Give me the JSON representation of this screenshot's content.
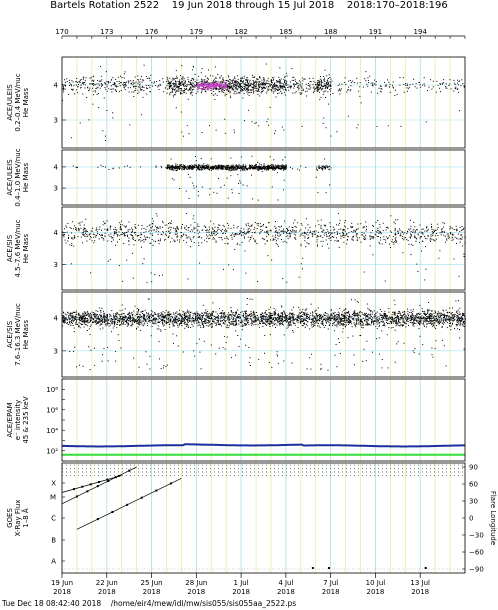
{
  "title": "Bartels Rotation 2522    19 Jun 2018 through 15 Jul 2018    2018:170–2018:196",
  "footer": "Tue Dec 18 08:42:40 2018    /home/eir4/mew/idl/mw/sis055/sis055aa_2522.ps",
  "colors": {
    "grid_yellow": "#f0e68c",
    "grid_cyan": "#a0e0f0",
    "points": "#000000",
    "dense_magenta": "#cc44cc",
    "epam_blue": "#1a2ea0",
    "epam_green": "#33dd33"
  },
  "chart_data": {
    "type": "scatter",
    "x_axis": {
      "range": [
        "2018-06-19",
        "2018-07-16"
      ],
      "date_ticks": [
        {
          "label": "19 Jun",
          "year": "2018",
          "date": "2018-06-19"
        },
        {
          "label": "22 Jun",
          "year": "2018",
          "date": "2018-06-22"
        },
        {
          "label": "25 Jun",
          "year": "2018",
          "date": "2018-06-25"
        },
        {
          "label": "28 Jun",
          "year": "2018",
          "date": "2018-06-28"
        },
        {
          "label": "1 Jul",
          "year": "2018",
          "date": "2018-07-01"
        },
        {
          "label": "4 Jul",
          "year": "2018",
          "date": "2018-07-04"
        },
        {
          "label": "7 Jul",
          "year": "2018",
          "date": "2018-07-07"
        },
        {
          "label": "10 Jul",
          "year": "2018",
          "date": "2018-07-10"
        },
        {
          "label": "13 Jul",
          "year": "2018",
          "date": "2018-07-13"
        }
      ],
      "doy_ticks": [
        {
          "label": "170",
          "date": "2018-06-19"
        },
        {
          "label": "173",
          "date": "2018-06-22"
        },
        {
          "label": "176",
          "date": "2018-06-25"
        },
        {
          "label": "179",
          "date": "2018-06-28"
        },
        {
          "label": "182",
          "date": "2018-07-01"
        },
        {
          "label": "185",
          "date": "2018-07-04"
        },
        {
          "label": "188",
          "date": "2018-07-07"
        },
        {
          "label": "191",
          "date": "2018-07-10"
        },
        {
          "label": "194",
          "date": "2018-07-13"
        }
      ]
    },
    "panels": [
      {
        "ylabel": [
          "ACE/ULEIS",
          "0.2–0.4 MeV/nuc",
          "He Mass"
        ],
        "ylim": [
          2.2,
          4.8
        ],
        "yticks": [
          "3",
          "4"
        ],
        "center": 4.0,
        "spread": 0.12,
        "density": [
          {
            "from": "2018-06-19",
            "to": "2018-06-25",
            "level": "medium"
          },
          {
            "from": "2018-06-25",
            "to": "2018-06-26",
            "level": "low"
          },
          {
            "from": "2018-06-26",
            "to": "2018-07-04",
            "level": "high"
          },
          {
            "from": "2018-07-04",
            "to": "2018-07-06",
            "level": "medium"
          },
          {
            "from": "2018-07-06",
            "to": "2018-07-07",
            "level": "high"
          },
          {
            "from": "2018-07-07",
            "to": "2018-07-16",
            "level": "low"
          }
        ],
        "dense_core": {
          "from": "2018-06-28",
          "to": "2018-06-30",
          "value": 4.0,
          "color": "#cc44cc"
        }
      },
      {
        "ylabel": [
          "ACE/ULEIS",
          "0.4–1.0 MeV/nuc",
          "He Mass"
        ],
        "ylim": [
          2.2,
          4.8
        ],
        "yticks": [
          "3",
          "4"
        ],
        "center": 4.0,
        "spread": 0.06,
        "density": [
          {
            "from": "2018-06-19",
            "to": "2018-06-26",
            "level": "sparse"
          },
          {
            "from": "2018-06-26",
            "to": "2018-07-04",
            "level": "high"
          },
          {
            "from": "2018-07-04",
            "to": "2018-07-06",
            "level": "sparse"
          },
          {
            "from": "2018-07-06",
            "to": "2018-07-07",
            "level": "medium"
          },
          {
            "from": "2018-07-07",
            "to": "2018-07-16",
            "level": "none"
          }
        ]
      },
      {
        "ylabel": [
          "ACE/SIS",
          "4.5–7.6 MeV/nuc",
          "He Mass"
        ],
        "ylim": [
          2.2,
          4.8
        ],
        "yticks": [
          "3",
          "4"
        ],
        "center": 4.0,
        "spread": 0.18,
        "density": [
          {
            "from": "2018-06-19",
            "to": "2018-07-16",
            "level": "medium"
          }
        ]
      },
      {
        "ylabel": [
          "ACE/SIS",
          "7.6–16.3 MeV/nuc",
          "He Mass"
        ],
        "ylim": [
          2.2,
          4.8
        ],
        "yticks": [
          "3",
          "4"
        ],
        "center": 4.0,
        "spread": 0.12,
        "density": [
          {
            "from": "2018-06-19",
            "to": "2018-07-16",
            "level": "high"
          }
        ]
      },
      {
        "ylabel": [
          "ACE/EPAM",
          "e⁻ intensity",
          "45 & 235 keV"
        ],
        "yscale": "log",
        "ylim": [
          10,
          1000000000
        ],
        "yticks": [
          "10²",
          "10⁴",
          "10⁶",
          "10⁸"
        ],
        "series": [
          {
            "color": "#1a2ea0",
            "value": 300
          },
          {
            "color": "#33dd33",
            "value": 40
          }
        ]
      },
      {
        "ylabel": [
          "GOES",
          "X-Ray Flux",
          "1–8 Å"
        ],
        "left_ticks": [
          "A",
          "B",
          "C",
          "M",
          "X"
        ],
        "right_label": "Flare Longitude",
        "right_ticks": [
          "90",
          "60",
          "30",
          "0",
          "−30",
          "−60",
          "−90"
        ],
        "flux": "A-level",
        "flare_longitude_lines": [
          {
            "start": "2018-06-19",
            "end": "2018-06-23",
            "lon_start": 45,
            "lon_end": 75
          },
          {
            "start": "2018-06-19",
            "end": "2018-06-24",
            "lon_start": 25,
            "lon_end": 90
          },
          {
            "start": "2018-06-20",
            "end": "2018-06-27",
            "lon_start": -20,
            "lon_end": 70
          }
        ]
      }
    ]
  }
}
